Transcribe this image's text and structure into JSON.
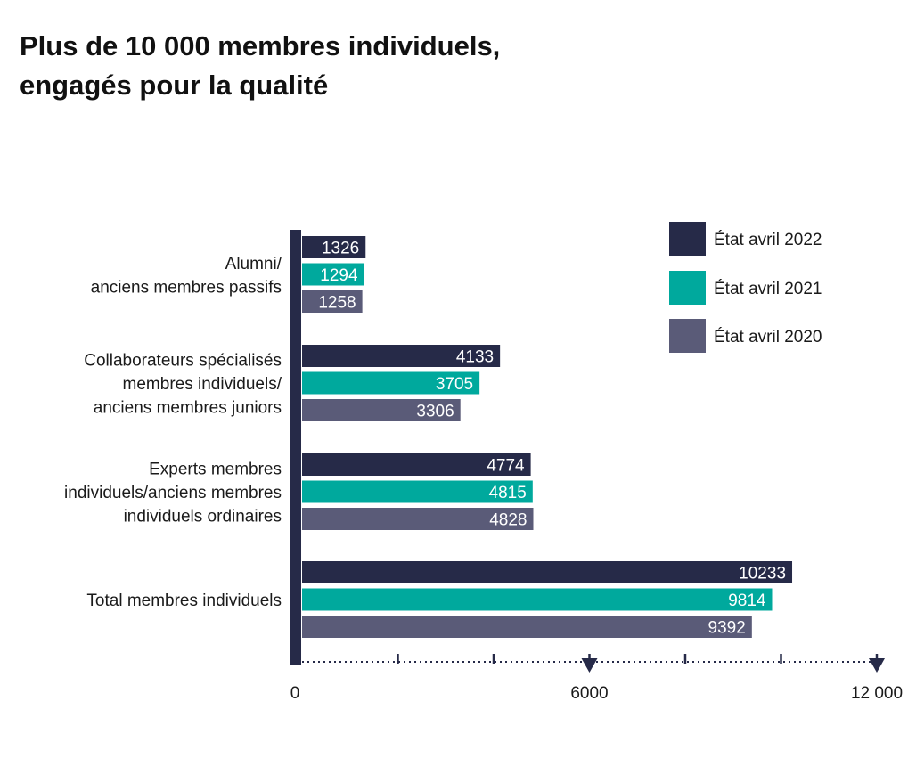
{
  "title_lines": [
    "Plus de 10 000 membres individuels,",
    "engagés pour la qualité"
  ],
  "chart_data": {
    "type": "bar",
    "orientation": "horizontal",
    "title": "Plus de 10 000 membres individuels, engagés pour la qualité",
    "categories": [
      [
        "Alumni/",
        "anciens membres passifs"
      ],
      [
        "Collaborateurs spécialisés",
        "membres individuels/",
        "anciens membres juniors"
      ],
      [
        "Experts membres",
        "individuels/anciens membres",
        "individuels ordinaires"
      ],
      [
        "Total membres individuels"
      ]
    ],
    "series": [
      {
        "name": "État avril 2022",
        "color": "#262a48",
        "values": [
          1326,
          4133,
          4774,
          10233
        ]
      },
      {
        "name": "État avril 2021",
        "color": "#00a99d",
        "values": [
          1294,
          3705,
          4815,
          9814
        ]
      },
      {
        "name": "État avril 2020",
        "color": "#5a5b78",
        "values": [
          1258,
          3306,
          4828,
          9392
        ]
      }
    ],
    "xlim": [
      0,
      12000
    ],
    "x_tick_labels": [
      {
        "value": 0,
        "label": "0"
      },
      {
        "value": 6000,
        "label": "6000"
      },
      {
        "value": 12000,
        "label": "12 000"
      }
    ],
    "minor_ticks": [
      2000,
      4000,
      6000,
      8000,
      10000,
      12000
    ],
    "arrow_ticks": [
      6000,
      12000
    ],
    "legend_position": "top-right",
    "axis_color": "#262a48",
    "grid": false
  }
}
